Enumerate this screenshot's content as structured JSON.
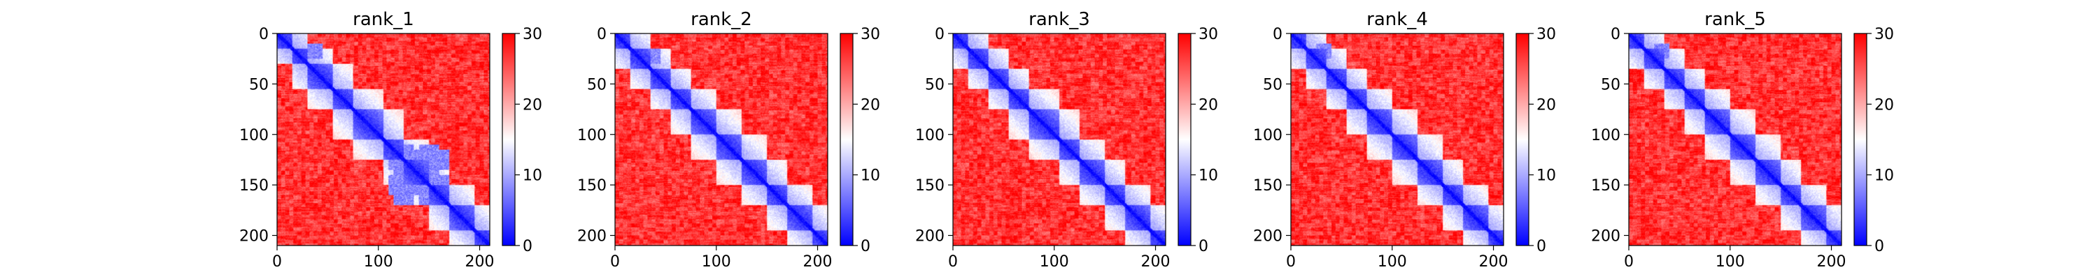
{
  "colormap": {
    "name": "bwr",
    "low_color": "#0000ff",
    "mid_color": "#ffffff",
    "high_color": "#ff0000"
  },
  "chart_data": [
    {
      "type": "heatmap",
      "title": "rank_1",
      "xlim": [
        0,
        210
      ],
      "ylim": [
        0,
        210
      ],
      "x_ticks": [
        0,
        100,
        200
      ],
      "y_ticks": [
        0,
        50,
        100,
        150,
        200
      ],
      "colorbar": {
        "min": 0,
        "max": 30,
        "ticks": [
          0,
          10,
          20,
          30
        ]
      },
      "domains": [
        [
          0,
          15
        ],
        [
          15,
          30
        ],
        [
          30,
          55
        ],
        [
          55,
          75
        ],
        [
          75,
          105
        ],
        [
          105,
          125
        ],
        [
          125,
          150
        ],
        [
          150,
          170
        ],
        [
          170,
          195
        ],
        [
          195,
          210
        ]
      ],
      "low_blocks": [
        [
          110,
          170,
          115,
          135
        ],
        [
          110,
          170,
          140,
          160
        ],
        [
          115,
          135,
          110,
          170
        ],
        [
          140,
          160,
          110,
          170
        ],
        [
          10,
          25,
          30,
          45
        ]
      ]
    },
    {
      "type": "heatmap",
      "title": "rank_2",
      "xlim": [
        0,
        210
      ],
      "ylim": [
        0,
        210
      ],
      "x_ticks": [
        0,
        100,
        200
      ],
      "y_ticks": [
        0,
        50,
        100,
        150,
        200
      ],
      "colorbar": {
        "min": 0,
        "max": 30,
        "ticks": [
          0,
          10,
          20,
          30
        ]
      },
      "domains": [
        [
          0,
          15
        ],
        [
          15,
          35
        ],
        [
          35,
          55
        ],
        [
          55,
          75
        ],
        [
          75,
          100
        ],
        [
          100,
          125
        ],
        [
          125,
          150
        ],
        [
          150,
          170
        ],
        [
          170,
          195
        ],
        [
          195,
          210
        ]
      ],
      "low_blocks": [
        [
          15,
          30,
          35,
          45
        ]
      ]
    },
    {
      "type": "heatmap",
      "title": "rank_3",
      "xlim": [
        0,
        210
      ],
      "ylim": [
        0,
        210
      ],
      "x_ticks": [
        0,
        100,
        200
      ],
      "y_ticks": [
        0,
        50,
        100,
        150,
        200
      ],
      "colorbar": {
        "min": 0,
        "max": 30,
        "ticks": [
          0,
          10,
          20,
          30
        ]
      },
      "domains": [
        [
          0,
          15
        ],
        [
          15,
          35
        ],
        [
          35,
          55
        ],
        [
          55,
          75
        ],
        [
          75,
          105
        ],
        [
          105,
          125
        ],
        [
          125,
          150
        ],
        [
          150,
          170
        ],
        [
          170,
          195
        ],
        [
          195,
          210
        ]
      ],
      "low_blocks": []
    },
    {
      "type": "heatmap",
      "title": "rank_4",
      "xlim": [
        0,
        210
      ],
      "ylim": [
        0,
        210
      ],
      "x_ticks": [
        0,
        100,
        200
      ],
      "y_ticks": [
        0,
        50,
        100,
        150,
        200
      ],
      "colorbar": {
        "min": 0,
        "max": 30,
        "ticks": [
          0,
          10,
          20,
          30
        ]
      },
      "domains": [
        [
          0,
          15
        ],
        [
          15,
          35
        ],
        [
          35,
          55
        ],
        [
          55,
          75
        ],
        [
          75,
          100
        ],
        [
          100,
          125
        ],
        [
          125,
          150
        ],
        [
          150,
          170
        ],
        [
          170,
          195
        ],
        [
          195,
          210
        ]
      ],
      "low_blocks": [
        [
          10,
          25,
          25,
          40
        ]
      ]
    },
    {
      "type": "heatmap",
      "title": "rank_5",
      "xlim": [
        0,
        210
      ],
      "ylim": [
        0,
        210
      ],
      "x_ticks": [
        0,
        100,
        200
      ],
      "y_ticks": [
        0,
        50,
        100,
        150,
        200
      ],
      "colorbar": {
        "min": 0,
        "max": 30,
        "ticks": [
          0,
          10,
          20,
          30
        ]
      },
      "domains": [
        [
          0,
          15
        ],
        [
          15,
          35
        ],
        [
          35,
          55
        ],
        [
          55,
          75
        ],
        [
          75,
          100
        ],
        [
          100,
          125
        ],
        [
          125,
          150
        ],
        [
          150,
          170
        ],
        [
          170,
          195
        ],
        [
          195,
          210
        ]
      ],
      "low_blocks": [
        [
          10,
          25,
          25,
          40
        ]
      ]
    }
  ]
}
